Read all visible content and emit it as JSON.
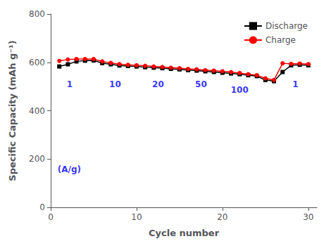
{
  "chart_data": {
    "type": "line",
    "xlabel": "Cycle number",
    "ylabel": "Specific Capacity (mAh g⁻¹)",
    "x": [
      1,
      2,
      3,
      4,
      5,
      6,
      7,
      8,
      9,
      10,
      11,
      12,
      13,
      14,
      15,
      16,
      17,
      18,
      19,
      20,
      21,
      22,
      23,
      24,
      25,
      26,
      27,
      28,
      29,
      30
    ],
    "series": [
      {
        "name": "Discharge",
        "color": "black",
        "marker": "square",
        "values": [
          583,
          592,
          604,
          607,
          608,
          597,
          592,
          587,
          585,
          583,
          580,
          578,
          576,
          573,
          571,
          568,
          566,
          563,
          560,
          557,
          554,
          551,
          547,
          543,
          527,
          522,
          560,
          588,
          590,
          588
        ]
      },
      {
        "name": "Charge",
        "color": "red",
        "marker": "circle",
        "values": [
          606,
          612,
          614,
          614,
          614,
          604,
          598,
          593,
          590,
          588,
          586,
          583,
          581,
          578,
          576,
          573,
          571,
          568,
          566,
          563,
          560,
          556,
          551,
          547,
          534,
          527,
          596,
          594,
          595,
          593
        ]
      }
    ],
    "annotations": [
      {
        "text": "1",
        "x": 2.2,
        "y": 528,
        "color": "blue"
      },
      {
        "text": "10",
        "x": 7.5,
        "y": 528,
        "color": "blue"
      },
      {
        "text": "20",
        "x": 12.5,
        "y": 528,
        "color": "blue"
      },
      {
        "text": "50",
        "x": 17.5,
        "y": 528,
        "color": "blue"
      },
      {
        "text": "100",
        "x": 22.0,
        "y": 503,
        "color": "blue"
      },
      {
        "text": "1",
        "x": 28.5,
        "y": 528,
        "color": "blue"
      },
      {
        "text": "(A/g)",
        "x": 0.8,
        "y": 140,
        "color": "blue"
      }
    ],
    "xlim": [
      0,
      31
    ],
    "ylim": [
      0,
      800
    ],
    "xticks": [
      0,
      10,
      20,
      30
    ],
    "yticks": [
      0,
      200,
      400,
      600,
      800
    ],
    "grid": false,
    "legend": "upper right"
  }
}
